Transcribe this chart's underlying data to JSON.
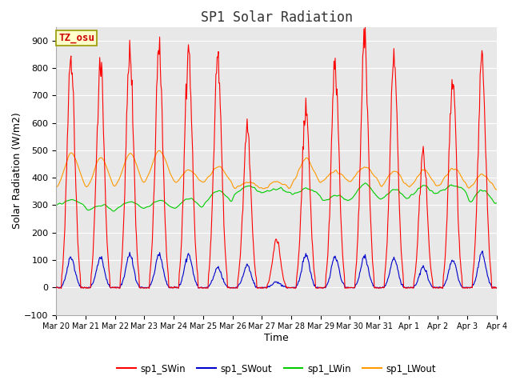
{
  "title": "SP1 Solar Radiation",
  "xlabel": "Time",
  "ylabel": "Solar Radiation (W/m2)",
  "ylim": [
    -100,
    950
  ],
  "annotation": "TZ_osu",
  "bg_color": "#e8e8e8",
  "fig_bg": "#ffffff",
  "grid_color": "#ffffff",
  "series_colors": {
    "sp1_SWin": "#ff0000",
    "sp1_SWout": "#0000cc",
    "sp1_LWin": "#00cc00",
    "sp1_LWout": "#ff9900"
  },
  "x_tick_labels": [
    "Mar 20",
    "Mar 21",
    "Mar 22",
    "Mar 23",
    "Mar 24",
    "Mar 25",
    "Mar 26",
    "Mar 27",
    "Mar 28",
    "Mar 29",
    "Mar 30",
    "Mar 31",
    "Apr 1",
    "Apr 2",
    "Apr 3",
    "Apr 4"
  ],
  "x_tick_positions": [
    0,
    1,
    2,
    3,
    4,
    5,
    6,
    7,
    8,
    9,
    10,
    11,
    12,
    13,
    14,
    15
  ],
  "yticks": [
    -100,
    0,
    100,
    200,
    300,
    400,
    500,
    600,
    700,
    800,
    900
  ],
  "sw_in_peaks": [
    840,
    820,
    850,
    855,
    860,
    860,
    580,
    175,
    660,
    800,
    895,
    830,
    500,
    760,
    820
  ],
  "sw_out_peaks": [
    110,
    110,
    120,
    120,
    120,
    75,
    80,
    20,
    120,
    110,
    110,
    105,
    75,
    100,
    125
  ],
  "lw_in_base": [
    295,
    275,
    280,
    285,
    283,
    300,
    335,
    345,
    330,
    310,
    310,
    315,
    330,
    345,
    295
  ],
  "lw_out_base": [
    345,
    340,
    350,
    370,
    370,
    375,
    355,
    355,
    365,
    375,
    380,
    355,
    355,
    365,
    345
  ],
  "lw_in_noon": [
    320,
    300,
    315,
    318,
    325,
    355,
    370,
    360,
    360,
    335,
    385,
    355,
    370,
    375,
    355
  ],
  "lw_out_noon": [
    490,
    475,
    488,
    500,
    430,
    440,
    385,
    385,
    470,
    425,
    440,
    425,
    425,
    435,
    415
  ]
}
